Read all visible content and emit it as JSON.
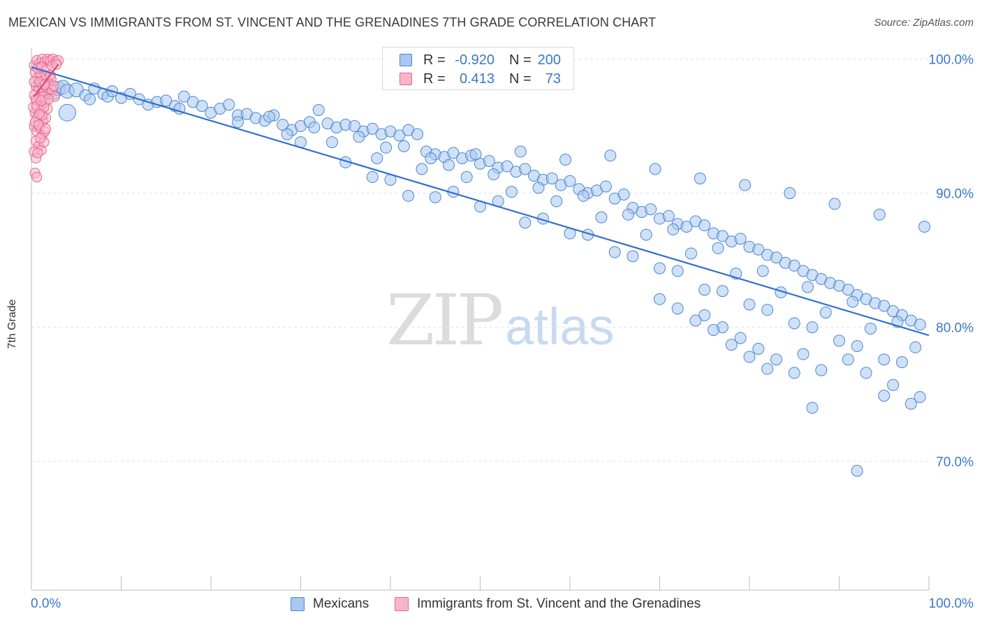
{
  "title": "MEXICAN VS IMMIGRANTS FROM ST. VINCENT AND THE GRENADINES 7TH GRADE CORRELATION CHART",
  "source": "Source: ZipAtlas.com",
  "watermark": {
    "zip": "ZIP",
    "atlas": "atlas"
  },
  "colors": {
    "blue_fill": "#a9c8f0",
    "blue_stroke": "#4a86d4",
    "blue_line": "#2f6fcc",
    "pink_fill": "#f7b6c8",
    "pink_stroke": "#e8628e",
    "pink_line": "#e0457a",
    "grid": "#e2e2e2",
    "tick_label": "#3a78c9"
  },
  "stat_legend": {
    "rows": [
      {
        "r_label": "R =",
        "r_value": "-0.920",
        "n_label": "N =",
        "n_value": "200"
      },
      {
        "r_label": "R =",
        "r_value": "0.413",
        "n_label": "N =",
        "n_value": "73"
      }
    ]
  },
  "bottom_legend": [
    "Mexicans",
    "Immigrants from St. Vincent and the Grenadines"
  ],
  "chart_data": {
    "type": "scatter",
    "title": "MEXICAN VS IMMIGRANTS FROM ST. VINCENT AND THE GRENADINES 7TH GRADE CORRELATION CHART",
    "xlabel": "",
    "ylabel": "7th Grade",
    "xlim": [
      0,
      100
    ],
    "ylim": [
      60.4,
      100.6
    ],
    "x_tick_labels": [
      "0.0%",
      "100.0%"
    ],
    "y_ticks": [
      70,
      80,
      90,
      100
    ],
    "y_tick_labels": [
      "70.0%",
      "80.0%",
      "90.0%",
      "100.0%"
    ],
    "x_minor_ticks": [
      0,
      10,
      20,
      30,
      40,
      50,
      60,
      70,
      80,
      90,
      100
    ],
    "grid": true,
    "legend_position": "bottom-center",
    "series": [
      {
        "name": "Mexicans",
        "R": -0.92,
        "N": 200,
        "trend": {
          "x": [
            0,
            100
          ],
          "y": [
            99.4,
            79.4
          ]
        },
        "points": [
          [
            1,
            98.0
          ],
          [
            1.5,
            97.6
          ],
          [
            2,
            97.9
          ],
          [
            2.5,
            97.5
          ],
          [
            3,
            97.8
          ],
          [
            3.5,
            97.9
          ],
          [
            4,
            97.6
          ],
          [
            5,
            97.7
          ],
          [
            4,
            96.0
          ],
          [
            6,
            97.3
          ],
          [
            6.5,
            97.0
          ],
          [
            7,
            97.8
          ],
          [
            8,
            97.4
          ],
          [
            8.5,
            97.2
          ],
          [
            9,
            97.6
          ],
          [
            10,
            97.1
          ],
          [
            11,
            97.4
          ],
          [
            12,
            97.0
          ],
          [
            13,
            96.6
          ],
          [
            14,
            96.8
          ],
          [
            15,
            96.9
          ],
          [
            16,
            96.5
          ],
          [
            16.5,
            96.3
          ],
          [
            17,
            97.2
          ],
          [
            18,
            96.8
          ],
          [
            19,
            96.5
          ],
          [
            20,
            96.0
          ],
          [
            21,
            96.3
          ],
          [
            22,
            96.6
          ],
          [
            23,
            95.8
          ],
          [
            24,
            95.9
          ],
          [
            25,
            95.6
          ],
          [
            26,
            95.4
          ],
          [
            27,
            95.8
          ],
          [
            28,
            95.1
          ],
          [
            29,
            94.7
          ],
          [
            30,
            95.0
          ],
          [
            31,
            95.3
          ],
          [
            32,
            96.2
          ],
          [
            33,
            95.2
          ],
          [
            34,
            94.9
          ],
          [
            35,
            95.1
          ],
          [
            36,
            95.0
          ],
          [
            37,
            94.6
          ],
          [
            38,
            94.8
          ],
          [
            39,
            94.4
          ],
          [
            40,
            94.6
          ],
          [
            41,
            94.3
          ],
          [
            42,
            94.7
          ],
          [
            43,
            94.4
          ],
          [
            44,
            93.1
          ],
          [
            45,
            92.9
          ],
          [
            46,
            92.7
          ],
          [
            47,
            93.0
          ],
          [
            48,
            92.6
          ],
          [
            49,
            92.8
          ],
          [
            50,
            92.2
          ],
          [
            51,
            92.4
          ],
          [
            52,
            91.9
          ],
          [
            53,
            92.0
          ],
          [
            54,
            91.6
          ],
          [
            55,
            91.8
          ],
          [
            56,
            91.3
          ],
          [
            57,
            91.0
          ],
          [
            58,
            91.1
          ],
          [
            59,
            90.6
          ],
          [
            60,
            90.9
          ],
          [
            61,
            90.3
          ],
          [
            62,
            90.0
          ],
          [
            63,
            90.2
          ],
          [
            64,
            90.5
          ],
          [
            65,
            89.6
          ],
          [
            66,
            89.9
          ],
          [
            67,
            88.9
          ],
          [
            68,
            88.6
          ],
          [
            69,
            88.8
          ],
          [
            70,
            88.1
          ],
          [
            71,
            88.3
          ],
          [
            72,
            87.7
          ],
          [
            73,
            87.5
          ],
          [
            74,
            87.9
          ],
          [
            75,
            87.6
          ],
          [
            76,
            87.0
          ],
          [
            77,
            86.8
          ],
          [
            78,
            86.4
          ],
          [
            79,
            86.6
          ],
          [
            80,
            86.0
          ],
          [
            81,
            85.8
          ],
          [
            82,
            85.4
          ],
          [
            83,
            85.2
          ],
          [
            84,
            84.8
          ],
          [
            85,
            84.6
          ],
          [
            86,
            84.2
          ],
          [
            87,
            83.9
          ],
          [
            88,
            83.6
          ],
          [
            89,
            83.3
          ],
          [
            90,
            83.1
          ],
          [
            91,
            82.8
          ],
          [
            92,
            82.4
          ],
          [
            93,
            82.1
          ],
          [
            94,
            81.8
          ],
          [
            95,
            81.6
          ],
          [
            96,
            81.2
          ],
          [
            97,
            80.9
          ],
          [
            98,
            80.5
          ],
          [
            99,
            80.2
          ],
          [
            26.5,
            95.7
          ],
          [
            31.5,
            94.9
          ],
          [
            36.5,
            94.2
          ],
          [
            41.5,
            93.5
          ],
          [
            46.5,
            92.1
          ],
          [
            51.5,
            91.4
          ],
          [
            56.5,
            90.4
          ],
          [
            61.5,
            89.8
          ],
          [
            66.5,
            88.4
          ],
          [
            71.5,
            87.3
          ],
          [
            76.5,
            85.9
          ],
          [
            81.5,
            84.2
          ],
          [
            86.5,
            83.0
          ],
          [
            91.5,
            81.9
          ],
          [
            96.5,
            80.4
          ],
          [
            23,
            95.3
          ],
          [
            28.5,
            94.4
          ],
          [
            33.5,
            93.8
          ],
          [
            38.5,
            92.6
          ],
          [
            43.5,
            91.8
          ],
          [
            48.5,
            91.2
          ],
          [
            53.5,
            90.1
          ],
          [
            58.5,
            89.4
          ],
          [
            63.5,
            88.2
          ],
          [
            68.5,
            86.9
          ],
          [
            73.5,
            85.5
          ],
          [
            78.5,
            84.0
          ],
          [
            83.5,
            82.6
          ],
          [
            88.5,
            81.1
          ],
          [
            93.5,
            79.9
          ],
          [
            98.5,
            78.5
          ],
          [
            35,
            92.3
          ],
          [
            40,
            91.0
          ],
          [
            45,
            89.7
          ],
          [
            50,
            89.0
          ],
          [
            55,
            87.8
          ],
          [
            60,
            87.0
          ],
          [
            65,
            85.6
          ],
          [
            70,
            84.4
          ],
          [
            75,
            82.8
          ],
          [
            80,
            81.7
          ],
          [
            85,
            80.3
          ],
          [
            90,
            79.0
          ],
          [
            95,
            77.6
          ],
          [
            30,
            93.8
          ],
          [
            38,
            91.2
          ],
          [
            42,
            89.8
          ],
          [
            47,
            90.1
          ],
          [
            52,
            89.4
          ],
          [
            57,
            88.1
          ],
          [
            62,
            86.9
          ],
          [
            67,
            85.3
          ],
          [
            72,
            84.2
          ],
          [
            77,
            82.7
          ],
          [
            82,
            81.3
          ],
          [
            87,
            80.0
          ],
          [
            92,
            78.6
          ],
          [
            97,
            77.4
          ],
          [
            39.5,
            93.4
          ],
          [
            44.5,
            92.6
          ],
          [
            49.5,
            92.9
          ],
          [
            54.5,
            93.1
          ],
          [
            59.5,
            92.5
          ],
          [
            64.5,
            92.8
          ],
          [
            69.5,
            91.8
          ],
          [
            74.5,
            91.1
          ],
          [
            79.5,
            90.6
          ],
          [
            84.5,
            90.0
          ],
          [
            89.5,
            89.2
          ],
          [
            94.5,
            88.4
          ],
          [
            99.5,
            87.5
          ],
          [
            86,
            78.0
          ],
          [
            88,
            76.8
          ],
          [
            91,
            77.6
          ],
          [
            93,
            76.6
          ],
          [
            95,
            74.9
          ],
          [
            96,
            75.7
          ],
          [
            98,
            74.3
          ],
          [
            99,
            74.8
          ],
          [
            87,
            74.0
          ],
          [
            92,
            69.3
          ],
          [
            75,
            80.9
          ],
          [
            77,
            80.0
          ],
          [
            79,
            79.2
          ],
          [
            81,
            78.4
          ],
          [
            83,
            77.6
          ],
          [
            85,
            76.6
          ],
          [
            70,
            82.1
          ],
          [
            72,
            81.4
          ],
          [
            74,
            80.5
          ],
          [
            76,
            79.8
          ],
          [
            78,
            78.7
          ],
          [
            80,
            77.8
          ],
          [
            82,
            76.9
          ]
        ]
      },
      {
        "name": "Immigrants from St. Vincent and the Grenadines",
        "R": 0.413,
        "N": 73,
        "trend": {
          "x": [
            0.3,
            3.0
          ],
          "y": [
            97.2,
            99.6
          ]
        },
        "points": [
          [
            0.3,
            99.5
          ],
          [
            0.6,
            99.9
          ],
          [
            0.9,
            99.7
          ],
          [
            1.2,
            100.0
          ],
          [
            1.5,
            99.8
          ],
          [
            1.8,
            100.0
          ],
          [
            2.1,
            99.9
          ],
          [
            2.4,
            100.0
          ],
          [
            2.7,
            99.8
          ],
          [
            3.0,
            99.9
          ],
          [
            0.4,
            99.0
          ],
          [
            0.7,
            98.6
          ],
          [
            1.0,
            98.9
          ],
          [
            1.3,
            98.4
          ],
          [
            1.6,
            98.7
          ],
          [
            1.9,
            98.2
          ],
          [
            2.2,
            98.5
          ],
          [
            0.5,
            98.0
          ],
          [
            0.8,
            97.7
          ],
          [
            1.1,
            98.1
          ],
          [
            1.4,
            97.6
          ],
          [
            1.7,
            97.9
          ],
          [
            2.0,
            97.4
          ],
          [
            2.3,
            97.7
          ],
          [
            2.6,
            97.2
          ],
          [
            0.3,
            97.3
          ],
          [
            0.6,
            96.9
          ],
          [
            0.9,
            97.1
          ],
          [
            1.2,
            96.6
          ],
          [
            1.5,
            96.8
          ],
          [
            1.8,
            96.3
          ],
          [
            0.4,
            96.0
          ],
          [
            0.7,
            95.7
          ],
          [
            1.0,
            96.1
          ],
          [
            1.3,
            95.4
          ],
          [
            1.6,
            95.6
          ],
          [
            0.3,
            95.0
          ],
          [
            0.6,
            94.6
          ],
          [
            0.9,
            94.9
          ],
          [
            1.2,
            94.3
          ],
          [
            1.5,
            94.6
          ],
          [
            0.5,
            93.9
          ],
          [
            0.8,
            93.5
          ],
          [
            1.1,
            93.2
          ],
          [
            1.4,
            93.8
          ],
          [
            0.4,
            91.5
          ],
          [
            0.6,
            91.2
          ],
          [
            0.3,
            98.3
          ],
          [
            0.5,
            97.0
          ],
          [
            0.7,
            99.3
          ],
          [
            0.9,
            98.3
          ],
          [
            1.1,
            99.4
          ],
          [
            1.3,
            97.2
          ],
          [
            1.5,
            98.1
          ],
          [
            1.7,
            99.2
          ],
          [
            1.9,
            97.0
          ],
          [
            2.1,
            98.8
          ],
          [
            2.3,
            99.5
          ],
          [
            2.5,
            98.0
          ],
          [
            2.8,
            99.6
          ],
          [
            0.2,
            96.4
          ],
          [
            0.4,
            95.3
          ],
          [
            0.6,
            96.5
          ],
          [
            0.8,
            95.1
          ],
          [
            1.0,
            94.1
          ],
          [
            1.2,
            95.8
          ],
          [
            1.4,
            96.4
          ],
          [
            1.6,
            94.8
          ],
          [
            0.3,
            93.1
          ],
          [
            0.5,
            92.6
          ],
          [
            0.7,
            93.0
          ],
          [
            0.9,
            95.9
          ],
          [
            1.1,
            96.9
          ]
        ]
      }
    ]
  }
}
